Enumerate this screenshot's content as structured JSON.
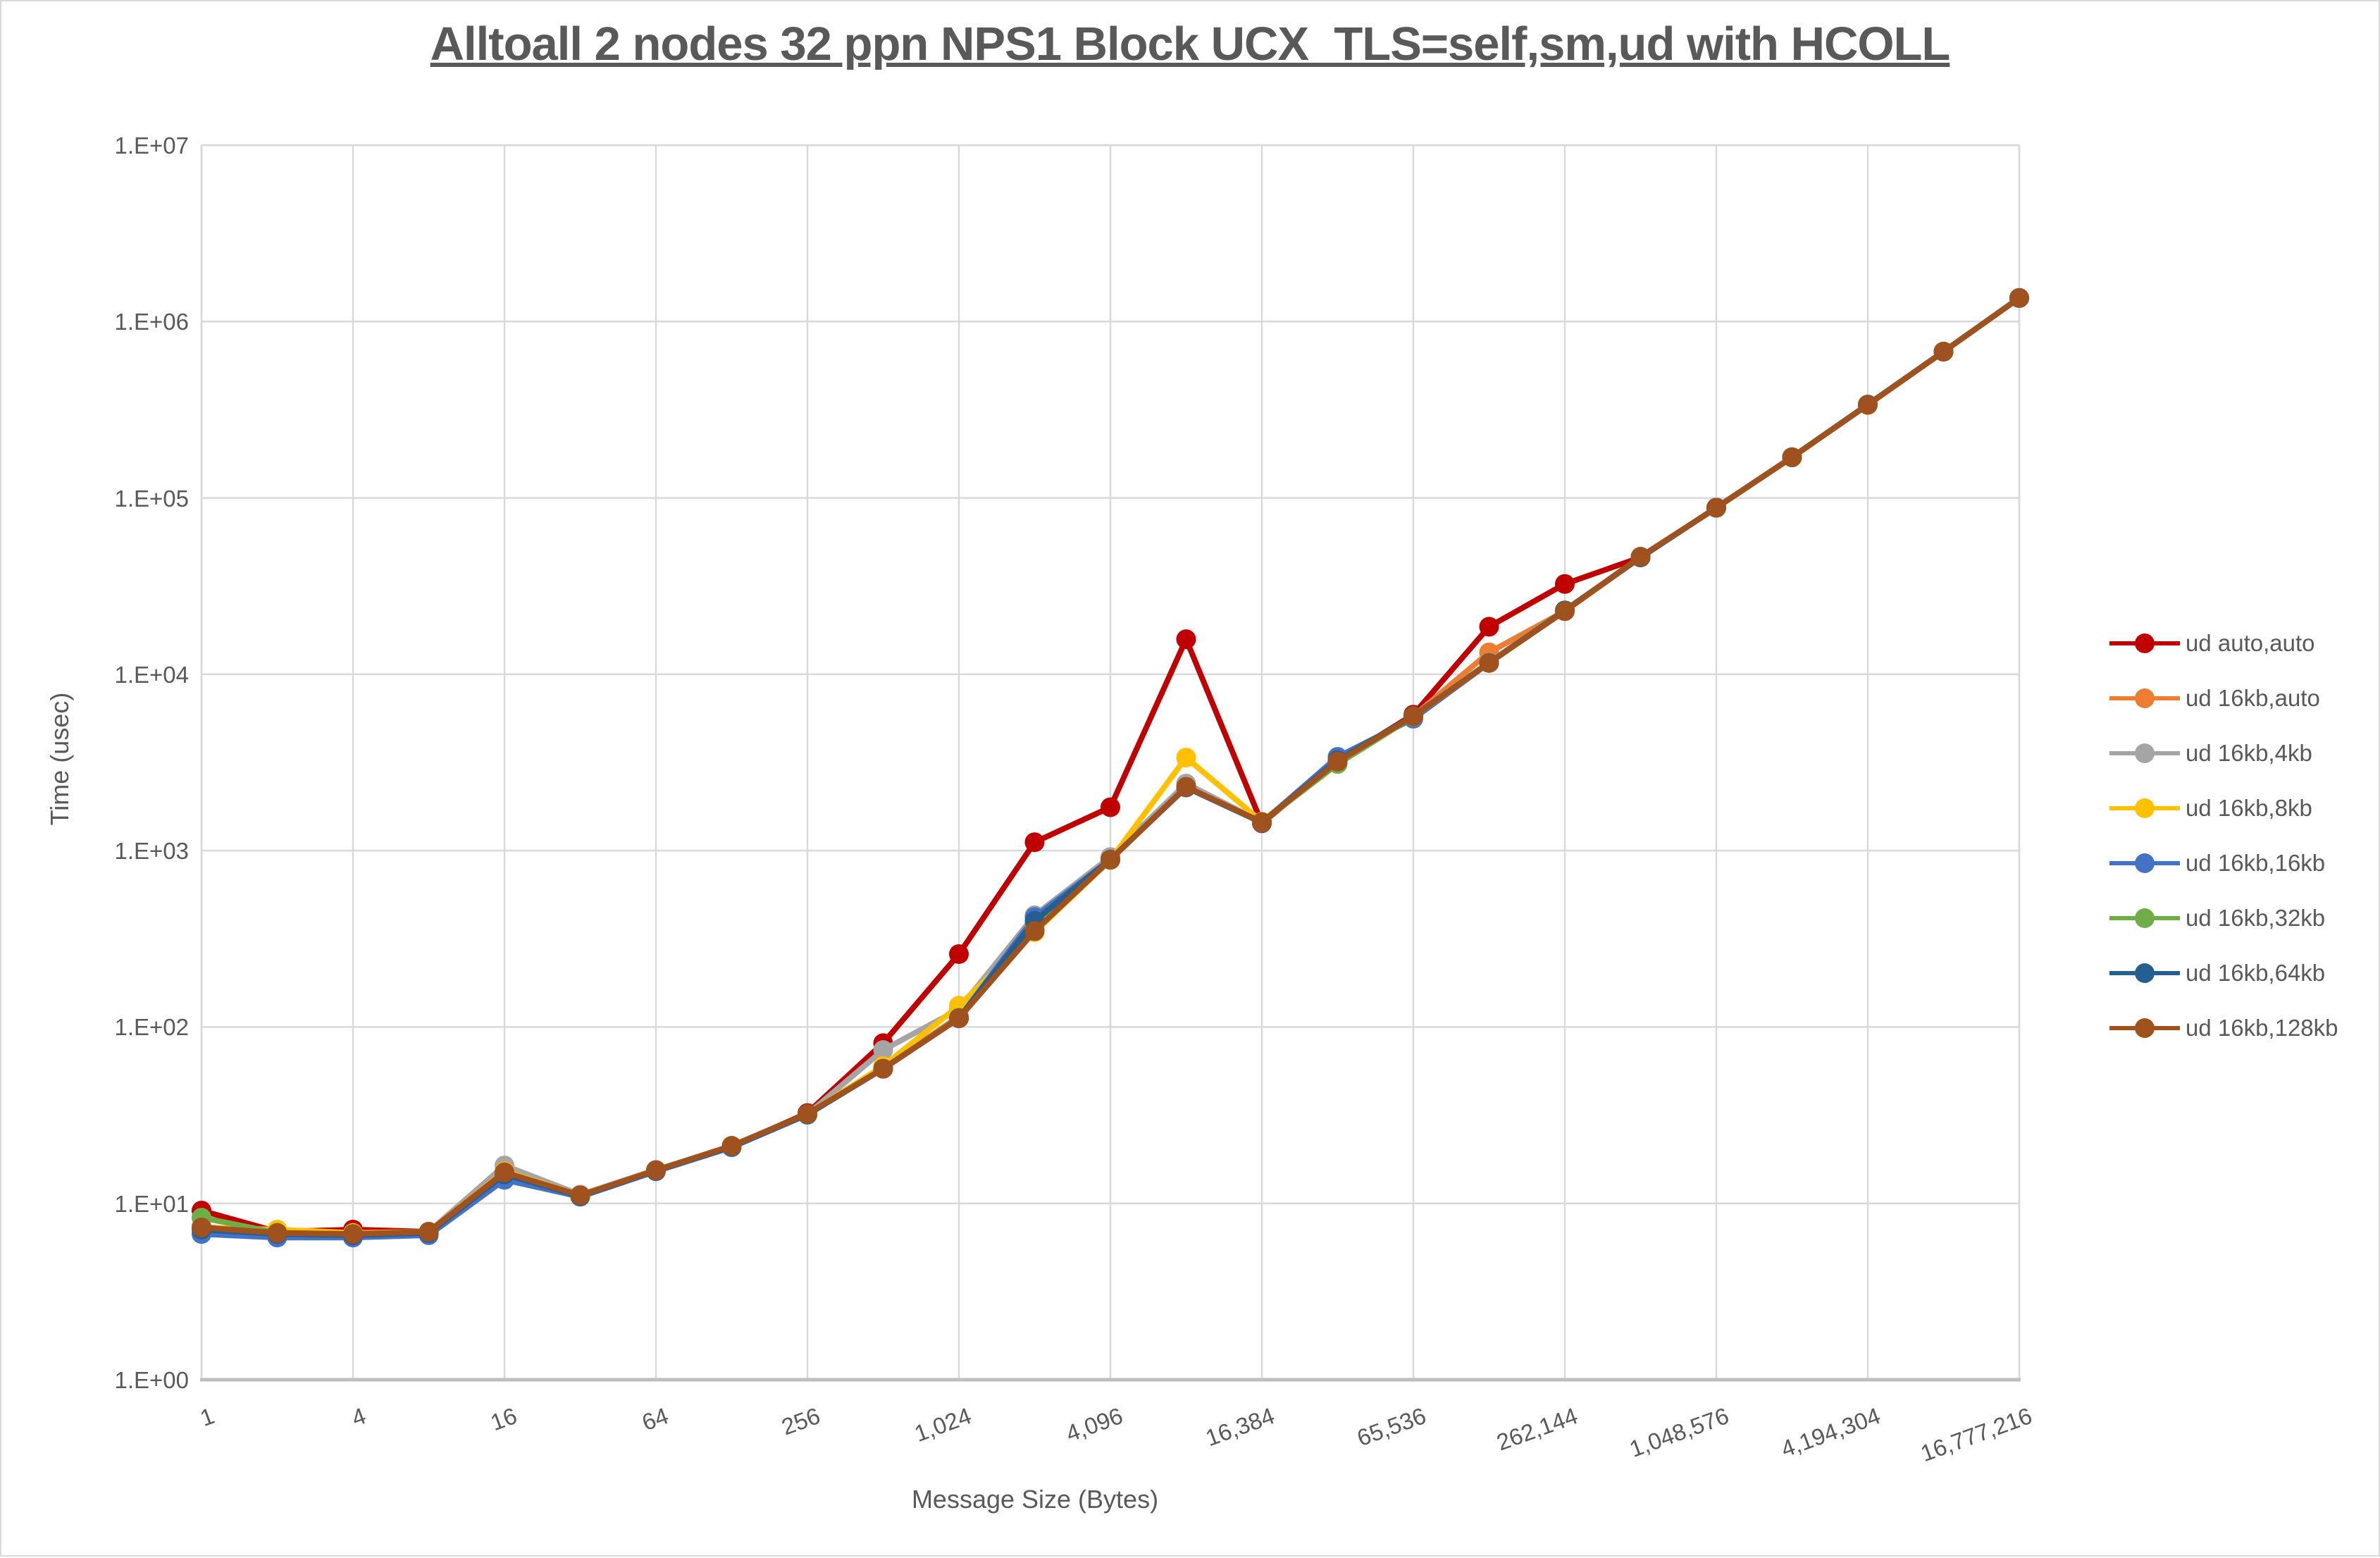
{
  "title": "Alltoall 2 nodes 32 ppn NPS1 Block UCX_TLS=self,sm,ud with HCOLL",
  "axes": {
    "x": {
      "title": "Message Size (Bytes)",
      "tick_labels": [
        "1",
        "4",
        "16",
        "64",
        "256",
        "1,024",
        "4,096",
        "16,384",
        "65,536",
        "262,144",
        "1,048,576",
        "4,194,304",
        "16,777,216"
      ]
    },
    "y": {
      "title": "Time (usec)",
      "tick_labels": [
        "1.E+00",
        "1.E+01",
        "1.E+02",
        "1.E+03",
        "1.E+04",
        "1.E+05",
        "1.E+06",
        "1.E+07"
      ]
    }
  },
  "legend": {
    "position": "right"
  },
  "colors": {
    "grid": "#d9d9d9",
    "axis_line": "#bfbfbf",
    "plot_border": "#d9d9d9",
    "text": "#595959",
    "background": "#ffffff"
  },
  "chart_data": {
    "type": "line",
    "title": "Alltoall 2 nodes 32 ppn NPS1 Block UCX_TLS=self,sm,ud with HCOLL",
    "xlabel": "Message Size (Bytes)",
    "ylabel": "Time (usec)",
    "xscale": "log2",
    "yscale": "log10",
    "xlim": [
      1,
      16777216
    ],
    "ylim": [
      1,
      10000000
    ],
    "grid": true,
    "legend_position": "right",
    "x": [
      1,
      2,
      4,
      8,
      16,
      32,
      64,
      128,
      256,
      512,
      1024,
      2048,
      4096,
      8192,
      16384,
      32768,
      65536,
      131072,
      262144,
      524288,
      1048576,
      2097152,
      4194304,
      8388608,
      16777216
    ],
    "x_tick_values": [
      1,
      4,
      16,
      64,
      256,
      1024,
      4096,
      16384,
      65536,
      262144,
      1048576,
      4194304,
      16777216
    ],
    "y_tick_values": [
      1,
      10,
      100,
      1000,
      10000,
      100000,
      1000000,
      10000000
    ],
    "series": [
      {
        "name": "ud auto,auto",
        "color": "#c00000",
        "values": [
          9.1,
          6.9,
          7.1,
          6.9,
          14.8,
          11.1,
          15.4,
          21,
          32.5,
          81,
          259,
          1116,
          1762,
          15800,
          1430,
          3200,
          5900,
          18600,
          32500,
          46000,
          88000,
          170000,
          338000,
          675000,
          1360000
        ]
      },
      {
        "name": "ud 16kb,auto",
        "color": "#ed7d31",
        "values": [
          7.2,
          6.8,
          6.7,
          6.9,
          15.0,
          11.1,
          15.4,
          21,
          32,
          58,
          115,
          360,
          890,
          2310,
          1450,
          3210,
          5790,
          13300,
          22800,
          46000,
          88000,
          170000,
          338000,
          675000,
          1360000
        ]
      },
      {
        "name": "ud 16kb,4kb",
        "color": "#a5a5a5",
        "values": [
          7.4,
          6.8,
          6.7,
          6.9,
          16.4,
          11.2,
          15.5,
          21,
          32,
          74,
          126,
          430,
          920,
          2400,
          1450,
          3220,
          5800,
          11700,
          23000,
          46100,
          88000,
          170000,
          338000,
          675000,
          1360000
        ]
      },
      {
        "name": "ud 16kb,8kb",
        "color": "#ffc000",
        "values": [
          7.3,
          7.1,
          6.8,
          6.9,
          15.2,
          11.1,
          15.4,
          21,
          32,
          60,
          132,
          345,
          885,
          3370,
          1460,
          3200,
          5780,
          11600,
          23000,
          46000,
          88000,
          170000,
          338000,
          675000,
          1360000
        ]
      },
      {
        "name": "ud 16kb,16kb",
        "color": "#4472c4",
        "values": [
          6.7,
          6.4,
          6.4,
          6.6,
          13.6,
          10.9,
          15.2,
          20.8,
          31.8,
          58,
          112,
          420,
          890,
          2280,
          1440,
          3400,
          5600,
          11600,
          23000,
          46000,
          88000,
          170000,
          338000,
          675000,
          1360000
        ]
      },
      {
        "name": "ud 16kb,32kb",
        "color": "#70ad47",
        "values": [
          8.3,
          6.8,
          6.7,
          6.9,
          14.9,
          11.0,
          15.4,
          21,
          32,
          58,
          113,
          380,
          888,
          2300,
          1450,
          3100,
          5750,
          11600,
          23000,
          46000,
          88000,
          170000,
          338000,
          675000,
          1360000
        ]
      },
      {
        "name": "ud 16kb,64kb",
        "color": "#255e91",
        "values": [
          7.1,
          6.7,
          6.6,
          6.8,
          14.6,
          11.0,
          15.3,
          21,
          32,
          58,
          112,
          400,
          890,
          2290,
          1450,
          3250,
          5800,
          11600,
          23000,
          46000,
          88000,
          170000,
          338000,
          675000,
          1360000
        ]
      },
      {
        "name": "ud 16kb,128kb",
        "color": "#a0521e",
        "values": [
          7.3,
          6.8,
          6.7,
          6.9,
          15.0,
          11.1,
          15.4,
          21.2,
          32.2,
          58,
          112,
          350,
          888,
          2300,
          1450,
          3200,
          5780,
          11600,
          22800,
          46400,
          88000,
          170000,
          337000,
          675000,
          1360000
        ]
      }
    ]
  }
}
